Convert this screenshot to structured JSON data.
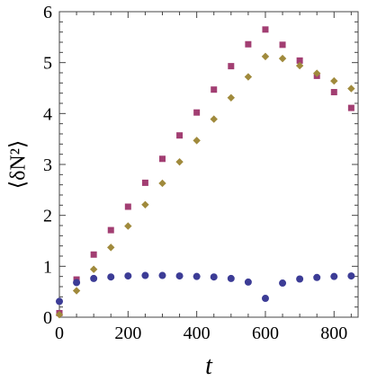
{
  "chart_data": {
    "type": "scatter",
    "title": "",
    "xlabel": "t",
    "ylabel": "⟨δN²⟩",
    "xlim": [
      0,
      870
    ],
    "ylim": [
      0,
      6
    ],
    "xticks": [
      0,
      200,
      400,
      600,
      800
    ],
    "yticks": [
      0,
      1,
      2,
      3,
      4,
      5,
      6
    ],
    "grid": false,
    "series": [
      {
        "marker": "square",
        "color": "#a23e72",
        "x": [
          0,
          50,
          100,
          150,
          200,
          250,
          300,
          350,
          400,
          450,
          500,
          550,
          600,
          650,
          700,
          750,
          800,
          850
        ],
        "y": [
          0.08,
          0.74,
          1.23,
          1.71,
          2.17,
          2.64,
          3.11,
          3.57,
          4.02,
          4.47,
          4.93,
          5.36,
          5.65,
          5.35,
          5.04,
          4.74,
          4.42,
          4.11
        ]
      },
      {
        "marker": "diamond",
        "color": "#a08a3c",
        "x": [
          0,
          50,
          100,
          150,
          200,
          250,
          300,
          350,
          400,
          450,
          500,
          550,
          600,
          650,
          700,
          750,
          800,
          850
        ],
        "y": [
          0.05,
          0.52,
          0.94,
          1.37,
          1.79,
          2.21,
          2.63,
          3.05,
          3.47,
          3.89,
          4.31,
          4.72,
          5.12,
          5.08,
          4.94,
          4.79,
          4.64,
          4.49
        ]
      },
      {
        "marker": "circle",
        "color": "#3c3c96",
        "x": [
          0,
          50,
          100,
          150,
          200,
          250,
          300,
          350,
          400,
          450,
          500,
          550,
          600,
          650,
          700,
          750,
          800,
          850
        ],
        "y": [
          0.31,
          0.68,
          0.76,
          0.79,
          0.81,
          0.82,
          0.82,
          0.81,
          0.8,
          0.79,
          0.76,
          0.69,
          0.37,
          0.67,
          0.75,
          0.78,
          0.8,
          0.81
        ]
      }
    ]
  }
}
